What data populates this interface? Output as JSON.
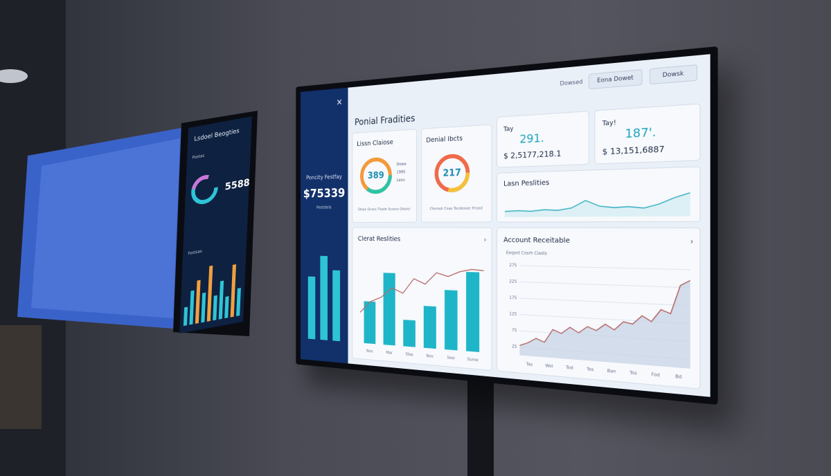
{
  "main_screen": {
    "sidebar": {
      "close": "×",
      "title": "Poncity Festfay",
      "value": "$75339",
      "subtitle": "Festdals",
      "bars": {
        "values": [
          72,
          96,
          80
        ],
        "ylim": [
          0,
          100
        ],
        "color": "#2ec4d6"
      }
    },
    "header_buttons": [
      "Dowsed",
      "Eona Dowet",
      "Dowsk"
    ],
    "title": "Ponial Fradities",
    "cards": [
      {
        "title": "Lissn Claiose",
        "value": "389",
        "legend": [
          "Dowe",
          "1995",
          "Laou"
        ],
        "caption": "Stsee Dcoss Tiosdr Scosre Ddsrer"
      },
      {
        "title": "Denial Ibcts",
        "value": "217",
        "caption": "Clesnek Ceas Tocdesoer Pcosd"
      },
      {
        "title": "Tay",
        "value": "291.",
        "amount": "$ 2,5177,218.1"
      },
      {
        "title": "Tay!",
        "value": "187'.",
        "amount": "$ 13,151,6887"
      }
    ],
    "line_card": {
      "title": "Lasn Peslities",
      "values": [
        8,
        9,
        8,
        10,
        9,
        12,
        22,
        14,
        12,
        13,
        11,
        16,
        24,
        30
      ],
      "ylim": [
        0,
        40
      ],
      "color": "#3fb3c4"
    },
    "bar_chart": {
      "title": "Clerat Reslities",
      "more": "›",
      "categories": [
        "Nov",
        "Mar",
        "Stas",
        "Nov",
        "Sosr",
        "Sume"
      ],
      "values": [
        52,
        88,
        32,
        50,
        70,
        92
      ],
      "line": [
        38,
        52,
        58,
        70,
        64,
        82,
        76,
        90,
        86,
        92,
        95,
        94
      ],
      "ylim": [
        0,
        110
      ],
      "color": "#1fb5c9",
      "line_color": "#b86c6c"
    },
    "area_chart": {
      "title": "Account Receitable",
      "more": "›",
      "subtitle": "Eeqsnt Cosrh Clasts",
      "categories": [
        "Tas",
        "Wol",
        "Tod",
        "Tos",
        "Ban",
        "Tos",
        "Fod",
        "Bd"
      ],
      "values": [
        30,
        40,
        55,
        45,
        85,
        75,
        95,
        80,
        100,
        90,
        110,
        95,
        120,
        115,
        140,
        125,
        160,
        150,
        230,
        245
      ],
      "ylim": [
        0,
        300
      ],
      "yticks": [
        275,
        225,
        175,
        125,
        75,
        25
      ],
      "color": "#b86c6c",
      "fill": "#c9d6e6"
    }
  },
  "left_screen": {
    "title": "Lsdoel Beogties",
    "label": "Postas",
    "value": "5588",
    "section": "Festsas",
    "bars": {
      "values": [
        30,
        55,
        70,
        48,
        90,
        40,
        62,
        35,
        85,
        45
      ],
      "colors": [
        "#2ec4d6",
        "#2ec4d6",
        "#f0a040",
        "#2ec4d6",
        "#f0a040",
        "#2ec4d6",
        "#2ec4d6",
        "#2ec4d6",
        "#f0a040",
        "#2ec4d6"
      ],
      "ylim": [
        0,
        100
      ]
    }
  }
}
